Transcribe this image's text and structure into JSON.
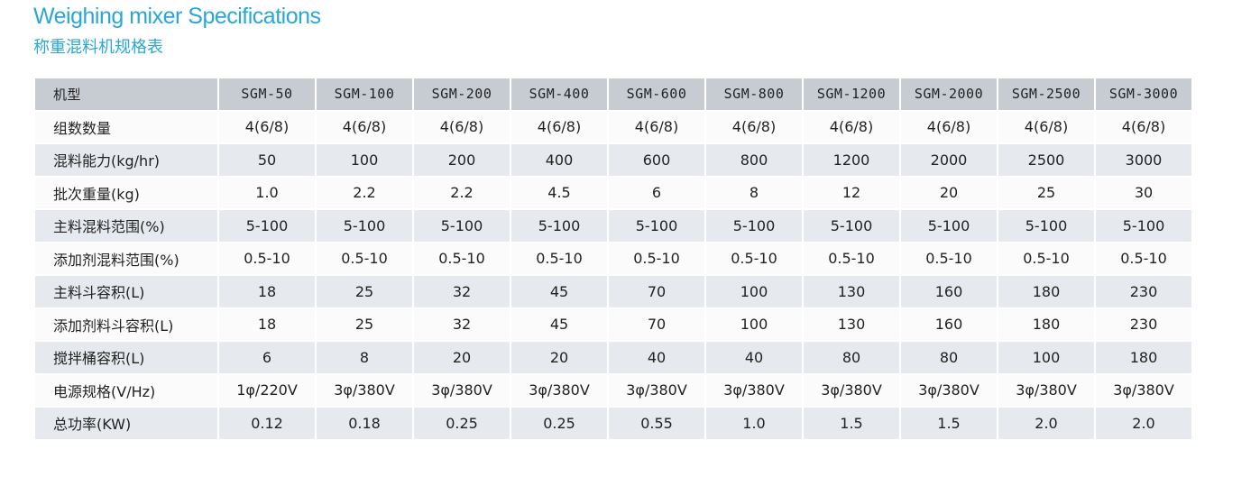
{
  "title_en": "Weighing mixer Specifications",
  "title_cn": "称重混料机规格表",
  "header": {
    "label": "机型",
    "models": [
      "SGM-50",
      "SGM-100",
      "SGM-200",
      "SGM-400",
      "SGM-600",
      "SGM-800",
      "SGM-1200",
      "SGM-2000",
      "SGM-2500",
      "SGM-3000"
    ]
  },
  "rows": [
    {
      "label": "组数数量",
      "values": [
        "4(6/8)",
        "4(6/8)",
        "4(6/8)",
        "4(6/8)",
        "4(6/8)",
        "4(6/8)",
        "4(6/8)",
        "4(6/8)",
        "4(6/8)",
        "4(6/8)"
      ]
    },
    {
      "label": "混料能力(kg/hr)",
      "values": [
        "50",
        "100",
        "200",
        "400",
        "600",
        "800",
        "1200",
        "2000",
        "2500",
        "3000"
      ]
    },
    {
      "label": "批次重量(kg)",
      "values": [
        "1.0",
        "2.2",
        "2.2",
        "4.5",
        "6",
        "8",
        "12",
        "20",
        "25",
        "30"
      ]
    },
    {
      "label": "主料混料范围(%)",
      "values": [
        "5-100",
        "5-100",
        "5-100",
        "5-100",
        "5-100",
        "5-100",
        "5-100",
        "5-100",
        "5-100",
        "5-100"
      ]
    },
    {
      "label": "添加剂混料范围(%)",
      "values": [
        "0.5-10",
        "0.5-10",
        "0.5-10",
        "0.5-10",
        "0.5-10",
        "0.5-10",
        "0.5-10",
        "0.5-10",
        "0.5-10",
        "0.5-10"
      ]
    },
    {
      "label": "主料斗容积(L)",
      "values": [
        "18",
        "25",
        "32",
        "45",
        "70",
        "100",
        "130",
        "160",
        "180",
        "230"
      ]
    },
    {
      "label": "添加剂料斗容积(L)",
      "values": [
        "18",
        "25",
        "32",
        "45",
        "70",
        "100",
        "130",
        "160",
        "180",
        "230"
      ]
    },
    {
      "label": "搅拌桶容积(L)",
      "values": [
        "6",
        "8",
        "20",
        "20",
        "40",
        "40",
        "80",
        "80",
        "100",
        "180"
      ]
    },
    {
      "label": "电源规格(V/Hz)",
      "values": [
        "1φ/220V",
        "3φ/380V",
        "3φ/380V",
        "3φ/380V",
        "3φ/380V",
        "3φ/380V",
        "3φ/380V",
        "3φ/380V",
        "3φ/380V",
        "3φ/380V"
      ]
    },
    {
      "label": "总功率(KW)",
      "values": [
        "0.12",
        "0.18",
        "0.25",
        "0.25",
        "0.55",
        "1.0",
        "1.5",
        "1.5",
        "2.0",
        "2.0"
      ]
    }
  ],
  "colors": {
    "title": "#2aa7d5",
    "header_bg": "#c7ccd3",
    "row_odd_bg": "#e6e9ee",
    "row_even_bg": "#fbfbfc"
  }
}
